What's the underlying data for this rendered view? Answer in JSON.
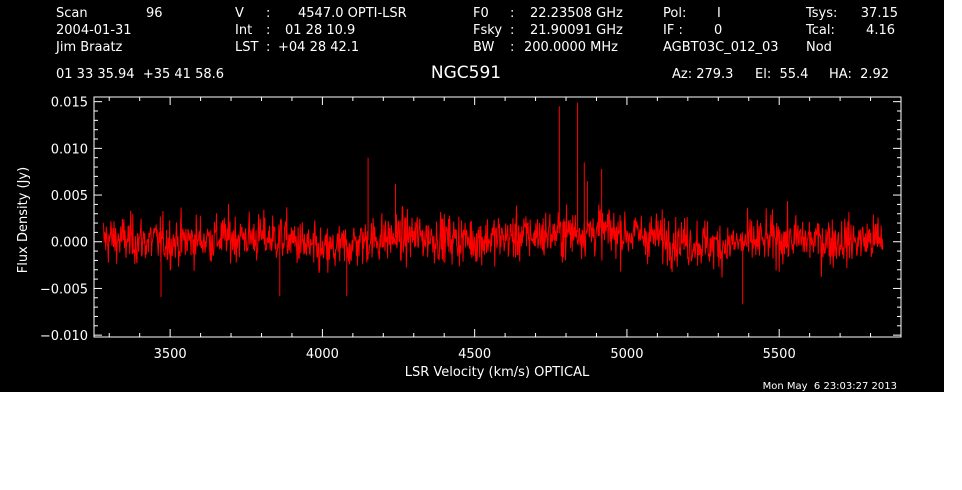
{
  "header": {
    "col1": [
      "Scan",
      "2004-01-31",
      "Jim Braatz"
    ],
    "scan_number": "96",
    "col2_labels": [
      "V",
      "Int",
      "LST"
    ],
    "col2_values": [
      "4547.0 OPTI-LSR",
      "01 28 10.9",
      "+04 28 42.1"
    ],
    "col3_labels": [
      "F0",
      "Fsky",
      "BW"
    ],
    "col3_values": [
      "22.23508 GHz",
      "21.90091 GHz",
      "200.0000 MHz"
    ],
    "col4_labels": [
      "Pol:",
      "IF :",
      "AGBT03C_012_03"
    ],
    "col4_values": [
      "I",
      "0",
      ""
    ],
    "col5_labels": [
      "Tsys:",
      "Tcal:",
      "Nod"
    ],
    "col5_values": [
      "37.15",
      "4.16",
      ""
    ],
    "coords": "01 33 35.94  +35 41 58.6",
    "source": "NGC591",
    "az": "Az: 279.3",
    "el": "El:  55.4",
    "ha": "HA:  2.92",
    "timestamp": "Mon May  6 23:03:27 2013"
  },
  "chart_data": {
    "type": "line",
    "xlabel": "LSR Velocity (km/s) OPTICAL",
    "ylabel": "Flux Density (Jy)",
    "xlim": [
      3250,
      5900
    ],
    "ylim": [
      -0.0102,
      0.0155
    ],
    "x_ticks": [
      3500,
      4000,
      4500,
      5000,
      5500
    ],
    "x_tick_labels": [
      "3500",
      "4000",
      "4500",
      "5000",
      "5500"
    ],
    "y_ticks": [
      -0.01,
      -0.005,
      0.0,
      0.005,
      0.01,
      0.015
    ],
    "y_tick_labels": [
      "−0.010",
      "−0.005",
      "0.000",
      "0.005",
      "0.010",
      "0.015"
    ],
    "grid": false,
    "series": [
      {
        "color": "#ff0000",
        "x_range": [
          3280,
          5840
        ],
        "n_points": 1500,
        "noise_rms": 0.0018,
        "baseline": [
          {
            "x": 3280,
            "y": 0.0003
          },
          {
            "x": 3500,
            "y": 0.0
          },
          {
            "x": 3700,
            "y": 0.0005
          },
          {
            "x": 3880,
            "y": 0.0004
          },
          {
            "x": 4000,
            "y": -0.0012
          },
          {
            "x": 4150,
            "y": 0.0002
          },
          {
            "x": 4300,
            "y": 0.0006
          },
          {
            "x": 4500,
            "y": 0.0002
          },
          {
            "x": 4700,
            "y": 0.0007
          },
          {
            "x": 4900,
            "y": 0.0012
          },
          {
            "x": 5100,
            "y": 0.0005
          },
          {
            "x": 5300,
            "y": -0.0004
          },
          {
            "x": 5500,
            "y": 0.0003
          },
          {
            "x": 5700,
            "y": 0.0001
          },
          {
            "x": 5840,
            "y": 0.0002
          }
        ],
        "peaks": [
          {
            "x": 4778,
            "y": 0.0145
          },
          {
            "x": 4838,
            "y": 0.0149
          },
          {
            "x": 4860,
            "y": 0.0085
          },
          {
            "x": 4917,
            "y": 0.0078
          },
          {
            "x": 4150,
            "y": 0.009
          },
          {
            "x": 4240,
            "y": 0.0062
          },
          {
            "x": 4870,
            "y": 0.0065
          }
        ],
        "dips": [
          {
            "x": 3470,
            "y": -0.0059
          },
          {
            "x": 3860,
            "y": -0.0058
          },
          {
            "x": 5380,
            "y": -0.0067
          },
          {
            "x": 4080,
            "y": -0.0058
          }
        ]
      }
    ]
  }
}
